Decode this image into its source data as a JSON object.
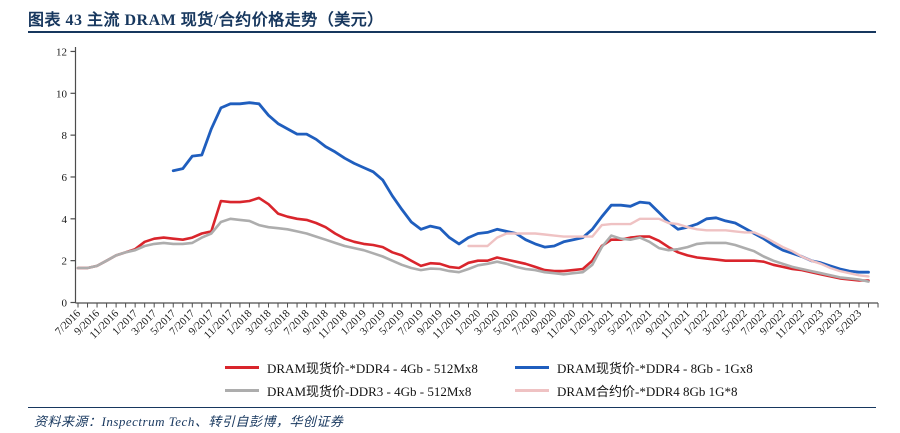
{
  "header": {
    "title": "图表 43  主流 DRAM 现货/合约价格走势（美元）"
  },
  "footer": {
    "source": "资料来源：Inspectrum Tech、转引自彭博，华创证券"
  },
  "colors": {
    "navy": "#17375E",
    "red_series": "#D9252C",
    "blue_series": "#1F5EBE",
    "gray_series": "#ADADAD",
    "pink_series": "#EFC2C3",
    "axis": "#4d4d4d"
  },
  "chart_data": {
    "type": "line",
    "title": "主流 DRAM 现货/合约价格走势（美元）",
    "xlabel": "",
    "ylabel": "",
    "ylim": [
      0,
      12
    ],
    "y_ticks": [
      0,
      2,
      4,
      6,
      8,
      10,
      12
    ],
    "grid": false,
    "legend_position": "bottom",
    "x_unit": "month",
    "x_tick_labels": [
      "7/2016",
      "9/2016",
      "11/2016",
      "1/2017",
      "3/2017",
      "5/2017",
      "7/2017",
      "9/2017",
      "11/2017",
      "1/2018",
      "3/2018",
      "5/2018",
      "7/2018",
      "9/2018",
      "11/2018",
      "1/2019",
      "3/2019",
      "5/2019",
      "7/2019",
      "9/2019",
      "11/2019",
      "1/2020",
      "3/2020",
      "5/2020",
      "7/2020",
      "9/2020",
      "11/2020",
      "1/2021",
      "3/2021",
      "5/2021",
      "7/2021",
      "9/2021",
      "11/2021",
      "1/2022",
      "3/2022",
      "5/2022",
      "7/2022",
      "9/2022",
      "11/2022",
      "1/2023",
      "3/2023",
      "5/2023"
    ],
    "series": [
      {
        "name": "DRAM现货价-*DDR4 - 4Gb - 512Mx8",
        "color": "#D9252C",
        "width": 2.6,
        "start_index": 0,
        "start_month": "7/2016",
        "values": [
          1.65,
          1.65,
          1.75,
          2.0,
          2.25,
          2.4,
          2.55,
          2.9,
          3.05,
          3.1,
          3.05,
          3.0,
          3.1,
          3.3,
          3.4,
          4.85,
          4.8,
          4.8,
          4.85,
          5.0,
          4.7,
          4.25,
          4.1,
          4.0,
          3.95,
          3.8,
          3.6,
          3.3,
          3.05,
          2.9,
          2.8,
          2.75,
          2.65,
          2.4,
          2.25,
          2.0,
          1.75,
          1.88,
          1.85,
          1.7,
          1.65,
          1.9,
          2.0,
          2.0,
          2.15,
          2.05,
          1.95,
          1.85,
          1.7,
          1.55,
          1.5,
          1.5,
          1.55,
          1.6,
          2.0,
          2.7,
          3.0,
          3.0,
          3.1,
          3.15,
          3.15,
          2.95,
          2.65,
          2.4,
          2.25,
          2.15,
          2.1,
          2.05,
          2.0,
          2.0,
          2.0,
          2.0,
          1.95,
          1.8,
          1.7,
          1.6,
          1.55,
          1.45,
          1.35,
          1.25,
          1.15,
          1.1,
          1.05,
          1.05
        ]
      },
      {
        "name": "DRAM现货价-*DDR4 - 8Gb - 1Gx8",
        "color": "#1F5EBE",
        "width": 2.8,
        "start_index": 10,
        "start_month": "5/2017",
        "values": [
          6.3,
          6.4,
          7.0,
          7.05,
          8.3,
          9.3,
          9.5,
          9.5,
          9.55,
          9.5,
          8.95,
          8.55,
          8.3,
          8.05,
          8.05,
          7.8,
          7.45,
          7.2,
          6.9,
          6.65,
          6.45,
          6.25,
          5.85,
          5.1,
          4.45,
          3.85,
          3.5,
          3.65,
          3.55,
          3.1,
          2.8,
          3.1,
          3.3,
          3.35,
          3.5,
          3.4,
          3.3,
          3.0,
          2.8,
          2.65,
          2.7,
          2.9,
          3.0,
          3.1,
          3.5,
          4.1,
          4.65,
          4.65,
          4.6,
          4.8,
          4.75,
          4.3,
          3.85,
          3.5,
          3.6,
          3.75,
          4.0,
          4.05,
          3.9,
          3.8,
          3.55,
          3.3,
          3.05,
          2.75,
          2.5,
          2.35,
          2.2,
          2.0,
          1.9,
          1.75,
          1.6,
          1.5,
          1.45,
          1.45
        ]
      },
      {
        "name": "DRAM现货价-DDR3 - 4Gb - 512Mx8",
        "color": "#ADADAD",
        "width": 2.6,
        "start_index": 0,
        "start_month": "7/2016",
        "values": [
          1.65,
          1.65,
          1.75,
          2.0,
          2.25,
          2.4,
          2.5,
          2.7,
          2.8,
          2.85,
          2.8,
          2.8,
          2.85,
          3.1,
          3.3,
          3.85,
          4.0,
          3.95,
          3.9,
          3.7,
          3.6,
          3.55,
          3.5,
          3.4,
          3.3,
          3.15,
          3.0,
          2.85,
          2.7,
          2.6,
          2.5,
          2.35,
          2.2,
          2.0,
          1.8,
          1.65,
          1.55,
          1.62,
          1.6,
          1.5,
          1.45,
          1.6,
          1.78,
          1.85,
          1.95,
          1.85,
          1.7,
          1.6,
          1.55,
          1.45,
          1.4,
          1.35,
          1.4,
          1.45,
          1.8,
          2.65,
          3.2,
          3.05,
          3.0,
          3.1,
          2.9,
          2.6,
          2.5,
          2.55,
          2.65,
          2.8,
          2.85,
          2.85,
          2.85,
          2.75,
          2.6,
          2.45,
          2.2,
          2.0,
          1.85,
          1.7,
          1.6,
          1.5,
          1.4,
          1.3,
          1.2,
          1.15,
          1.1,
          1.0
        ]
      },
      {
        "name": "DRAM合约价-*DDR4 8Gb 1G*8",
        "color": "#EFC2C3",
        "width": 2.4,
        "start_index": 41,
        "start_month": "12/2019",
        "values": [
          2.7,
          2.7,
          2.7,
          3.1,
          3.3,
          3.3,
          3.3,
          3.3,
          3.25,
          3.2,
          3.15,
          3.15,
          3.15,
          3.15,
          3.7,
          3.75,
          3.75,
          3.75,
          4.0,
          4.0,
          4.0,
          3.8,
          3.75,
          3.6,
          3.5,
          3.45,
          3.45,
          3.45,
          3.4,
          3.35,
          3.35,
          3.15,
          2.9,
          2.65,
          2.45,
          2.2,
          2.0,
          1.85,
          1.65,
          1.5,
          1.4,
          1.3,
          1.25
        ]
      }
    ]
  }
}
